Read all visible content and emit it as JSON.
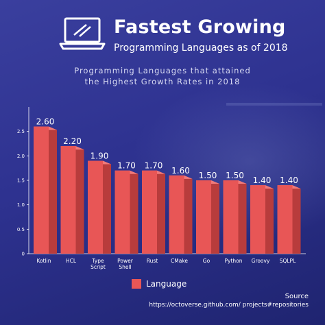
{
  "header": {
    "title": "Fastest Growing",
    "subtitle": "Programming Languages as of 2018",
    "logo_icon": "laptop-icon"
  },
  "caption": {
    "line1": "Programming Languages that attained",
    "line2": "the Highest Growth Rates in 2018"
  },
  "chart_data": {
    "type": "bar",
    "categories": [
      "Kotlin",
      "HCL",
      "Type Script",
      "Power Shell",
      "Rust",
      "CMake",
      "Go",
      "Python",
      "Groovy",
      "SQLPL"
    ],
    "series": [
      {
        "name": "Language",
        "values": [
          2.6,
          2.2,
          1.9,
          1.7,
          1.7,
          1.6,
          1.5,
          1.5,
          1.4,
          1.4
        ]
      }
    ],
    "data_labels": [
      "2.60",
      "2.20",
      "1.90",
      "1.70",
      "1.70",
      "1.60",
      "1.50",
      "1.50",
      "1.40",
      "1.40"
    ],
    "yticks": [
      "0",
      "0.5",
      "1.0",
      "1.5",
      "2.0",
      "2.5"
    ],
    "ylim": [
      0,
      3
    ],
    "grid": false,
    "legend": "bottom-center",
    "colors": {
      "bar": "#e85656",
      "bar_side": "#b83c3c",
      "bar_top": "#f07a7a"
    }
  },
  "source": {
    "title": "Source",
    "url": "https://octoverse.github.com/ projects#repositories"
  }
}
